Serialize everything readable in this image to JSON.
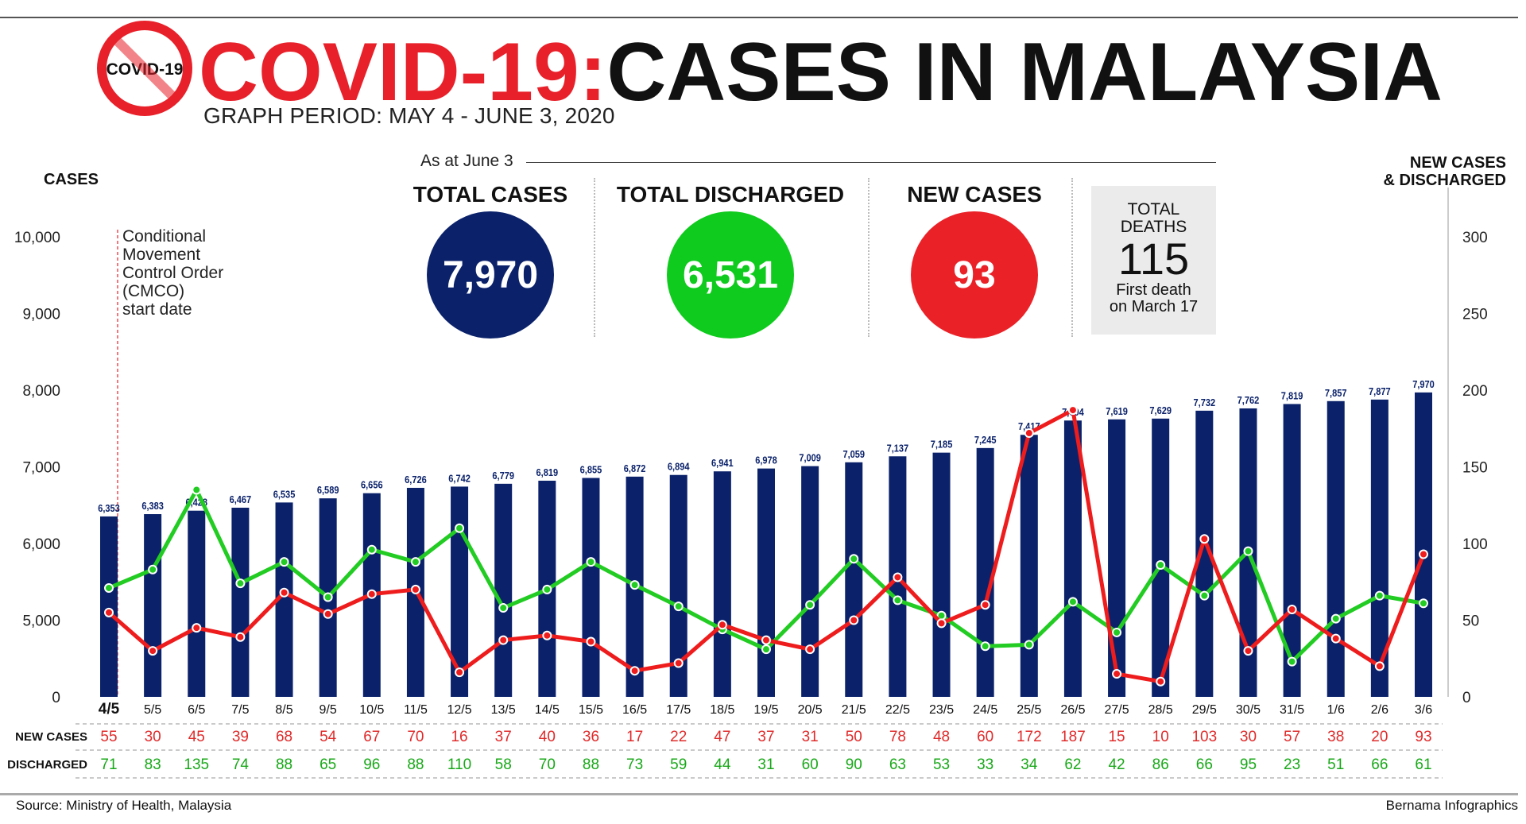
{
  "header": {
    "logo_text": "COVID-19",
    "title_red": "COVID-19:",
    "title_black": "CASES IN MALAYSIA",
    "subtitle": "GRAPH PERIOD: MAY 4 - JUNE 3, 2020"
  },
  "stats": {
    "as_at": "As at June 3",
    "total_cases_label": "TOTAL CASES",
    "total_cases": "7,970",
    "total_discharged_label": "TOTAL DISCHARGED",
    "total_discharged": "6,531",
    "new_cases_label": "NEW CASES",
    "new_cases": "93",
    "deaths_label_1": "TOTAL",
    "deaths_label_2": "DEATHS",
    "deaths": "115",
    "deaths_note_1": "First death",
    "deaths_note_2": "on March 17"
  },
  "annotation": {
    "lines": [
      "Conditional",
      "Movement",
      "Control Order",
      "(CMCO)",
      "start date"
    ]
  },
  "footer": {
    "source": "Source: Ministry of Health, Malaysia",
    "credit": "Bernama Infographics"
  },
  "colors": {
    "bars": "#0b226b",
    "new_cases": "#ee1c1c",
    "discharged": "#22cc22",
    "title_red": "#e8202a",
    "table_red": "#e02a2a",
    "table_green": "#18a818"
  },
  "chart_data": {
    "type": "bar+line",
    "left_axis_title": "CASES",
    "right_axis_title_1": "NEW CASES",
    "right_axis_title_2": "& DISCHARGED",
    "left_ticks": [
      "0",
      "5,000",
      "6,000",
      "7,000",
      "8,000",
      "9,000",
      "10,000"
    ],
    "left_axis_break": "0 to 5,000 compressed",
    "right_ticks": [
      "0",
      "50",
      "100",
      "150",
      "200",
      "250",
      "300"
    ],
    "right_ylim": [
      0,
      300
    ],
    "categories": [
      "4/5",
      "5/5",
      "6/5",
      "7/5",
      "8/5",
      "9/5",
      "10/5",
      "11/5",
      "12/5",
      "13/5",
      "14/5",
      "15/5",
      "16/5",
      "17/5",
      "18/5",
      "19/5",
      "20/5",
      "21/5",
      "22/5",
      "23/5",
      "24/5",
      "25/5",
      "26/5",
      "27/5",
      "28/5",
      "29/5",
      "30/5",
      "31/5",
      "1/6",
      "2/6",
      "3/6"
    ],
    "total_cases": [
      6353,
      6383,
      6428,
      6467,
      6535,
      6589,
      6656,
      6726,
      6742,
      6779,
      6819,
      6855,
      6872,
      6894,
      6941,
      6978,
      7009,
      7059,
      7137,
      7185,
      7245,
      7417,
      7604,
      7619,
      7629,
      7732,
      7762,
      7819,
      7857,
      7877,
      7970
    ],
    "total_cases_labels": [
      "6,353",
      "6,383",
      "6,428",
      "6,467",
      "6,535",
      "6,589",
      "6,656",
      "6,726",
      "6,742",
      "6,779",
      "6,819",
      "6,855",
      "6,872",
      "6,894",
      "6,941",
      "6,978",
      "7,009",
      "7,059",
      "7,137",
      "7,185",
      "7,245",
      "7,417",
      "7,604",
      "7,619",
      "7,629",
      "7,732",
      "7,762",
      "7,819",
      "7,857",
      "7,877",
      "7,970"
    ],
    "series": [
      {
        "name": "NEW CASES",
        "values": [
          55,
          30,
          45,
          39,
          68,
          54,
          67,
          70,
          16,
          37,
          40,
          36,
          17,
          22,
          47,
          37,
          31,
          50,
          78,
          48,
          60,
          172,
          187,
          15,
          10,
          103,
          30,
          57,
          38,
          20,
          93
        ]
      },
      {
        "name": "DISCHARGED",
        "values": [
          71,
          83,
          135,
          74,
          88,
          65,
          96,
          88,
          110,
          58,
          70,
          88,
          73,
          59,
          44,
          31,
          60,
          90,
          63,
          53,
          33,
          34,
          62,
          42,
          86,
          66,
          95,
          23,
          51,
          66,
          61
        ]
      }
    ],
    "highlight_category": "4/5"
  }
}
